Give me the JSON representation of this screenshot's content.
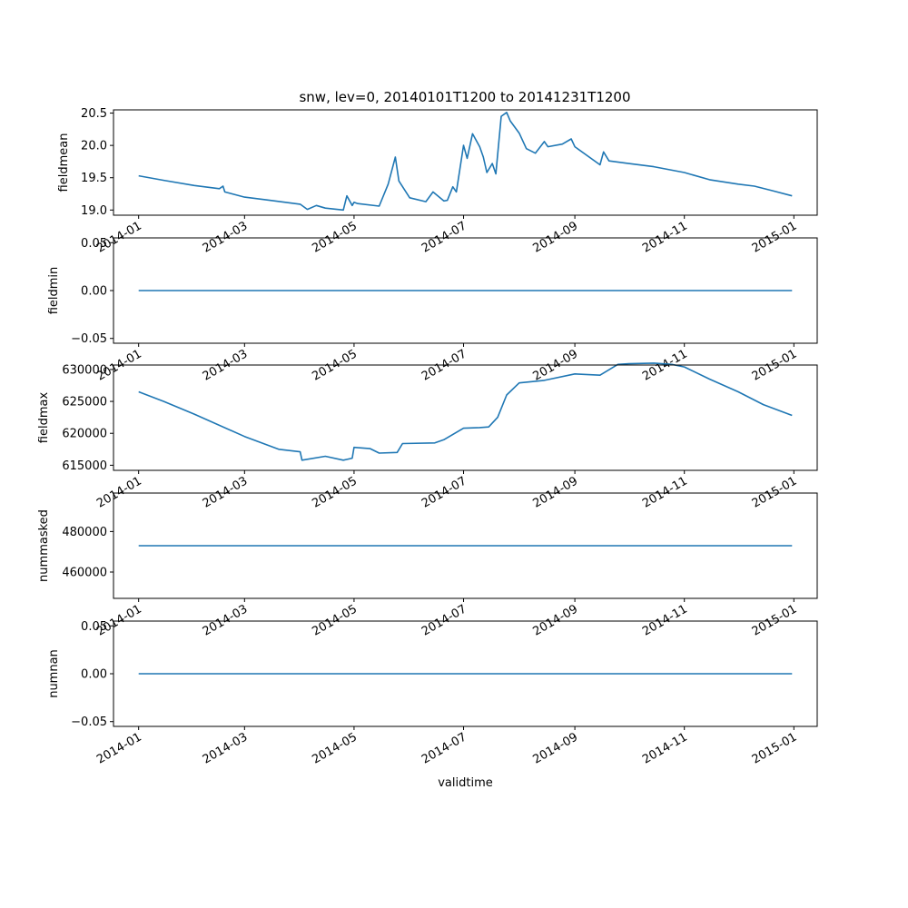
{
  "title": "snw, lev=0, 20140101T1200 to 20141231T1200",
  "chart_data": [
    {
      "type": "line",
      "ylabel": "fieldmean",
      "ylim": [
        18.92,
        20.55
      ],
      "yticks": [
        19.0,
        19.5,
        20.0,
        20.5
      ],
      "ytick_labels": [
        "19.0",
        "19.5",
        "20.0",
        "20.5"
      ],
      "xtick_labels": [
        "2014-01",
        "2014-03",
        "2014-05",
        "2014-07",
        "2014-09",
        "2014-11",
        "2015-01"
      ],
      "series": [
        {
          "color": "#1f77b4",
          "x": [
            "2014-01-01",
            "2014-01-15",
            "2014-02-01",
            "2014-02-15",
            "2014-02-17",
            "2014-02-18",
            "2014-03-01",
            "2014-03-15",
            "2014-04-01",
            "2014-04-05",
            "2014-04-10",
            "2014-04-15",
            "2014-04-25",
            "2014-04-27",
            "2014-04-30",
            "2014-05-01",
            "2014-05-03",
            "2014-05-15",
            "2014-05-20",
            "2014-05-24",
            "2014-05-26",
            "2014-06-01",
            "2014-06-10",
            "2014-06-14",
            "2014-06-20",
            "2014-06-22",
            "2014-06-25",
            "2014-06-27",
            "2014-07-01",
            "2014-07-03",
            "2014-07-06",
            "2014-07-10",
            "2014-07-12",
            "2014-07-14",
            "2014-07-17",
            "2014-07-19",
            "2014-07-22",
            "2014-07-25",
            "2014-07-27",
            "2014-08-01",
            "2014-08-05",
            "2014-08-10",
            "2014-08-15",
            "2014-08-17",
            "2014-08-25",
            "2014-08-30",
            "2014-09-01",
            "2014-09-15",
            "2014-09-17",
            "2014-09-20",
            "2014-10-01",
            "2014-10-15",
            "2014-11-01",
            "2014-11-15",
            "2014-12-01",
            "2014-12-10",
            "2014-12-20",
            "2014-12-31"
          ],
          "y": [
            19.53,
            19.46,
            19.38,
            19.33,
            19.37,
            19.28,
            19.2,
            19.15,
            19.09,
            19.01,
            19.07,
            19.03,
            19.0,
            19.22,
            19.07,
            19.12,
            19.1,
            19.06,
            19.4,
            19.82,
            19.45,
            19.19,
            19.13,
            19.28,
            19.14,
            19.15,
            19.36,
            19.28,
            20.0,
            19.8,
            20.18,
            19.98,
            19.82,
            19.58,
            19.72,
            19.56,
            20.45,
            20.51,
            20.38,
            20.19,
            19.95,
            19.88,
            20.06,
            19.98,
            20.02,
            20.1,
            19.98,
            19.7,
            19.9,
            19.76,
            19.72,
            19.67,
            19.58,
            19.47,
            19.4,
            19.37,
            19.3,
            19.22
          ]
        }
      ]
    },
    {
      "type": "line",
      "ylabel": "fieldmin",
      "ylim": [
        -0.055,
        0.055
      ],
      "yticks": [
        -0.05,
        0.0,
        0.05
      ],
      "ytick_labels": [
        "−0.05",
        "0.00",
        "0.05"
      ],
      "xtick_labels": [
        "2014-01",
        "2014-03",
        "2014-05",
        "2014-07",
        "2014-09",
        "2014-11",
        "2015-01"
      ],
      "series": [
        {
          "color": "#1f77b4",
          "x": [
            "2014-01-01",
            "2014-12-31"
          ],
          "y": [
            0.0,
            0.0
          ]
        }
      ]
    },
    {
      "type": "line",
      "ylabel": "fieldmax",
      "ylim": [
        614200,
        630700
      ],
      "yticks": [
        615000,
        620000,
        625000,
        630000
      ],
      "ytick_labels": [
        "615000",
        "620000",
        "625000",
        "630000"
      ],
      "xtick_labels": [
        "2014-01",
        "2014-03",
        "2014-05",
        "2014-07",
        "2014-09",
        "2014-11",
        "2015-01"
      ],
      "series": [
        {
          "color": "#1f77b4",
          "x": [
            "2014-01-01",
            "2014-01-15",
            "2014-02-01",
            "2014-03-01",
            "2014-03-20",
            "2014-04-01",
            "2014-04-02",
            "2014-04-15",
            "2014-04-25",
            "2014-04-30",
            "2014-05-01",
            "2014-05-10",
            "2014-05-15",
            "2014-05-25",
            "2014-05-28",
            "2014-06-15",
            "2014-06-20",
            "2014-07-01",
            "2014-07-10",
            "2014-07-15",
            "2014-07-20",
            "2014-07-25",
            "2014-08-01",
            "2014-08-15",
            "2014-09-01",
            "2014-09-15",
            "2014-09-25",
            "2014-10-01",
            "2014-10-15",
            "2014-10-25",
            "2014-11-01",
            "2014-11-15",
            "2014-12-01",
            "2014-12-15",
            "2014-12-31"
          ],
          "y": [
            626500,
            625000,
            623000,
            619500,
            617500,
            617100,
            615800,
            616400,
            615800,
            616100,
            617800,
            617600,
            616900,
            617000,
            618400,
            618500,
            619000,
            620800,
            620900,
            621000,
            622500,
            626000,
            627900,
            628300,
            629300,
            629100,
            630800,
            630900,
            631000,
            630800,
            630400,
            628500,
            626500,
            624500,
            622800
          ]
        }
      ]
    },
    {
      "type": "line",
      "ylabel": "nummasked",
      "ylim": [
        447000,
        499000
      ],
      "yticks": [
        460000,
        480000
      ],
      "ytick_labels": [
        "460000",
        "480000"
      ],
      "xtick_labels": [
        "2014-01",
        "2014-03",
        "2014-05",
        "2014-07",
        "2014-09",
        "2014-11",
        "2015-01"
      ],
      "series": [
        {
          "color": "#1f77b4",
          "x": [
            "2014-01-01",
            "2014-12-31"
          ],
          "y": [
            473000,
            473000
          ]
        }
      ]
    },
    {
      "type": "line",
      "ylabel": "numnan",
      "xlabel": "validtime",
      "ylim": [
        -0.055,
        0.055
      ],
      "yticks": [
        -0.05,
        0.0,
        0.05
      ],
      "ytick_labels": [
        "−0.05",
        "0.00",
        "0.05"
      ],
      "xtick_labels": [
        "2014-01",
        "2014-03",
        "2014-05",
        "2014-07",
        "2014-09",
        "2014-11",
        "2015-01"
      ],
      "series": [
        {
          "color": "#1f77b4",
          "x": [
            "2014-01-01",
            "2014-12-31"
          ],
          "y": [
            0.0,
            0.0
          ]
        }
      ]
    }
  ]
}
